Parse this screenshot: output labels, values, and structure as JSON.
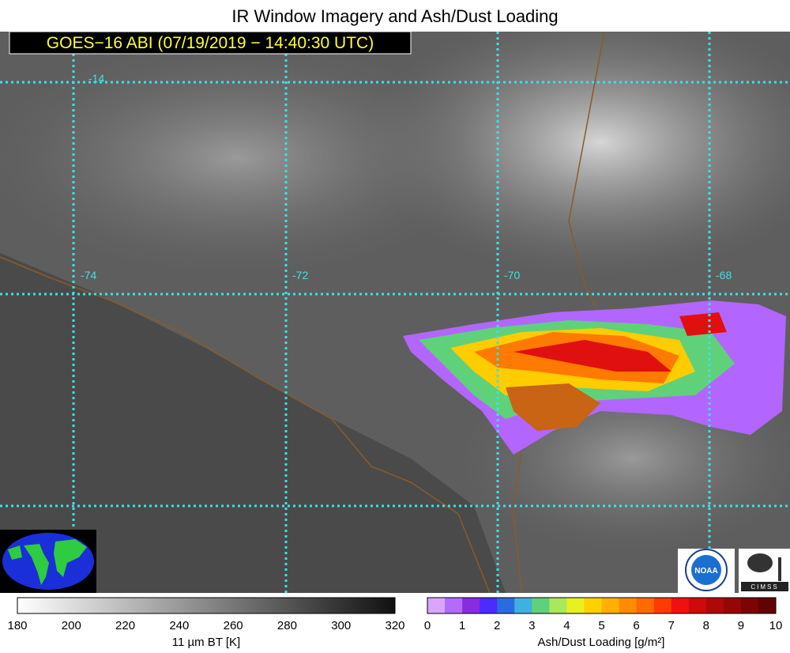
{
  "title": "IR Window Imagery and Ash/Dust Loading",
  "subtitle": "GOES−16 ABI (07/19/2019 − 14:40:30 UTC)",
  "grid_labels": {
    "lat": [
      "-14"
    ],
    "lon": [
      "-74",
      "-72",
      "-70",
      "-68"
    ]
  },
  "left_colorbar": {
    "ticks": [
      180,
      200,
      220,
      240,
      260,
      280,
      300,
      320
    ],
    "label": "11 µm BT [K]"
  },
  "right_colorbar": {
    "ticks": [
      0,
      1,
      2,
      3,
      4,
      5,
      6,
      7,
      8,
      9,
      10
    ],
    "label": "Ash/Dust Loading [g/m²]"
  },
  "logos": {
    "noaa": "NOAA",
    "cimss": "CIMSS"
  }
}
